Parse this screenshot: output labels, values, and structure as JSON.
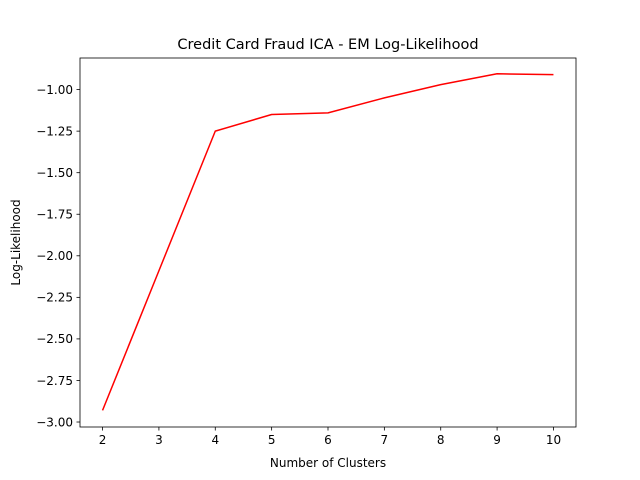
{
  "chart_data": {
    "type": "line",
    "title": "Credit Card Fraud ICA - EM Log-Likelihood",
    "xlabel": "Number of Clusters",
    "ylabel": "Log-Likelihood",
    "x": [
      2,
      3,
      4,
      5,
      6,
      7,
      8,
      9,
      10
    ],
    "xticks": [
      "2",
      "3",
      "4",
      "5",
      "6",
      "7",
      "8",
      "9",
      "10"
    ],
    "yticks": [
      {
        "value": -1.0,
        "label": "−1.00"
      },
      {
        "value": -1.25,
        "label": "−1.25"
      },
      {
        "value": -1.5,
        "label": "−1.50"
      },
      {
        "value": -1.75,
        "label": "−1.75"
      },
      {
        "value": -2.0,
        "label": "−2.00"
      },
      {
        "value": -2.25,
        "label": "−2.25"
      },
      {
        "value": -2.5,
        "label": "−2.50"
      },
      {
        "value": -2.75,
        "label": "−2.75"
      },
      {
        "value": -3.0,
        "label": "−3.00"
      }
    ],
    "xlim": [
      1.6,
      10.4
    ],
    "ylim": [
      -3.03,
      -0.81
    ],
    "grid": false,
    "series": [
      {
        "color": "#ff0000",
        "values": [
          -2.93,
          -2.09,
          -1.25,
          -1.15,
          -1.14,
          -1.05,
          -0.97,
          -0.905,
          -0.91
        ]
      }
    ]
  }
}
